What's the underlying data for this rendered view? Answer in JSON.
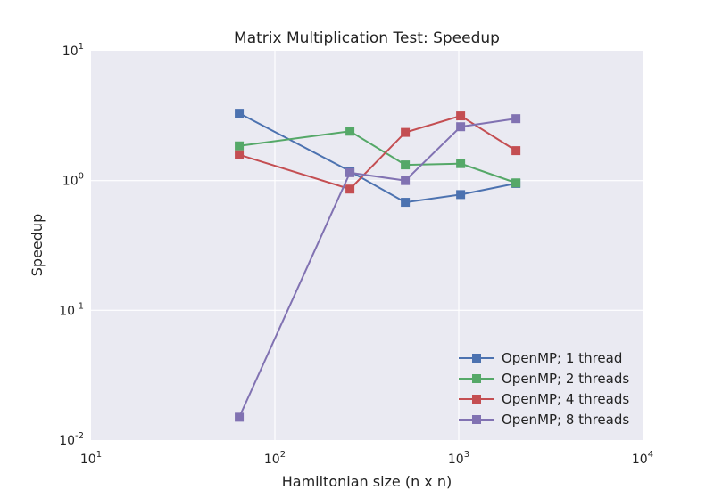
{
  "chart_data": {
    "type": "line",
    "title": "Matrix Multiplication Test: Speedup",
    "xlabel": "Hamiltonian size (n x n)",
    "ylabel": "Speedup",
    "xscale": "log",
    "yscale": "log",
    "xlim": [
      10,
      10000
    ],
    "ylim": [
      0.01,
      10
    ],
    "x_ticks": [
      {
        "value": 10,
        "base": "10",
        "exp": "1"
      },
      {
        "value": 100,
        "base": "10",
        "exp": "2"
      },
      {
        "value": 1000,
        "base": "10",
        "exp": "3"
      },
      {
        "value": 10000,
        "base": "10",
        "exp": "4"
      }
    ],
    "y_ticks": [
      {
        "value": 0.01,
        "base": "10",
        "exp": "-2"
      },
      {
        "value": 0.1,
        "base": "10",
        "exp": "-1"
      },
      {
        "value": 1,
        "base": "10",
        "exp": "0"
      },
      {
        "value": 10,
        "base": "10",
        "exp": "1"
      }
    ],
    "grid": true,
    "legend_position": "bottom-right",
    "x": [
      64,
      256,
      512,
      1024,
      2048
    ],
    "series": [
      {
        "name": "OpenMP; 1 thread",
        "color": "#4c72b0",
        "values": [
          3.3,
          1.18,
          0.68,
          0.78,
          0.95
        ]
      },
      {
        "name": "OpenMP; 2 threads",
        "color": "#55a868",
        "values": [
          1.85,
          2.4,
          1.32,
          1.35,
          0.96
        ]
      },
      {
        "name": "OpenMP; 4 threads",
        "color": "#c44e52",
        "values": [
          1.58,
          0.86,
          2.35,
          3.15,
          1.7
        ]
      },
      {
        "name": "OpenMP; 8 threads",
        "color": "#8172b2",
        "values": [
          0.015,
          1.15,
          1.0,
          2.6,
          3.0
        ]
      }
    ]
  }
}
